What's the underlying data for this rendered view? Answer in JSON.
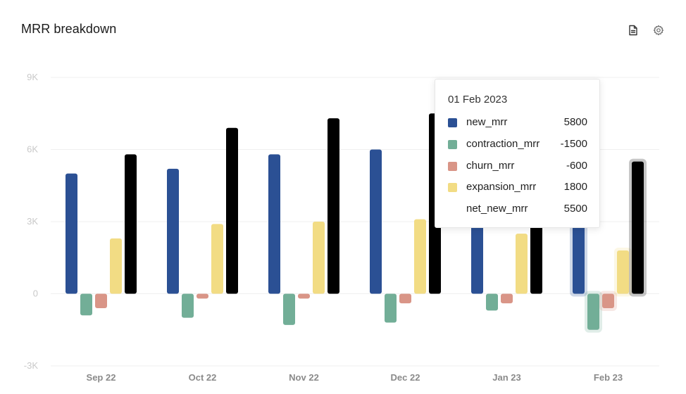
{
  "header": {
    "title": "MRR breakdown",
    "icons": [
      "document-icon",
      "gear-icon"
    ]
  },
  "colors": {
    "new_mrr": "#2b5094",
    "contraction_mrr": "#72ae97",
    "churn_mrr": "#d99587",
    "expansion_mrr": "#f2dc84",
    "net_new_mrr": "#000000"
  },
  "chart_data": {
    "type": "bar",
    "title": "MRR breakdown",
    "categories": [
      "Sep 22",
      "Oct 22",
      "Nov 22",
      "Dec 22",
      "Jan 23",
      "Feb 23"
    ],
    "y_ticks": [
      "9K",
      "6K",
      "3K",
      "0",
      "-3K"
    ],
    "ylim": [
      -3000,
      9000
    ],
    "grid": true,
    "highlighted_category": "Feb 23",
    "series": [
      {
        "name": "new_mrr",
        "values": [
          5000,
          5200,
          5800,
          6000,
          5600,
          5800
        ]
      },
      {
        "name": "contraction_mrr",
        "values": [
          -900,
          -1000,
          -1300,
          -1200,
          -700,
          -1500
        ]
      },
      {
        "name": "churn_mrr",
        "values": [
          -600,
          -200,
          -200,
          -400,
          -400,
          -600
        ]
      },
      {
        "name": "expansion_mrr",
        "values": [
          2300,
          2900,
          3000,
          3100,
          2500,
          1800
        ]
      },
      {
        "name": "net_new_mrr",
        "values": [
          5800,
          6900,
          7300,
          7500,
          7000,
          5500
        ]
      }
    ]
  },
  "tooltip": {
    "date": "01 Feb 2023",
    "rows": [
      {
        "label": "new_mrr",
        "value": "5800"
      },
      {
        "label": "contraction_mrr",
        "value": "-1500"
      },
      {
        "label": "churn_mrr",
        "value": "-600"
      },
      {
        "label": "expansion_mrr",
        "value": "1800"
      },
      {
        "label": "net_new_mrr",
        "value": "5500"
      }
    ]
  }
}
